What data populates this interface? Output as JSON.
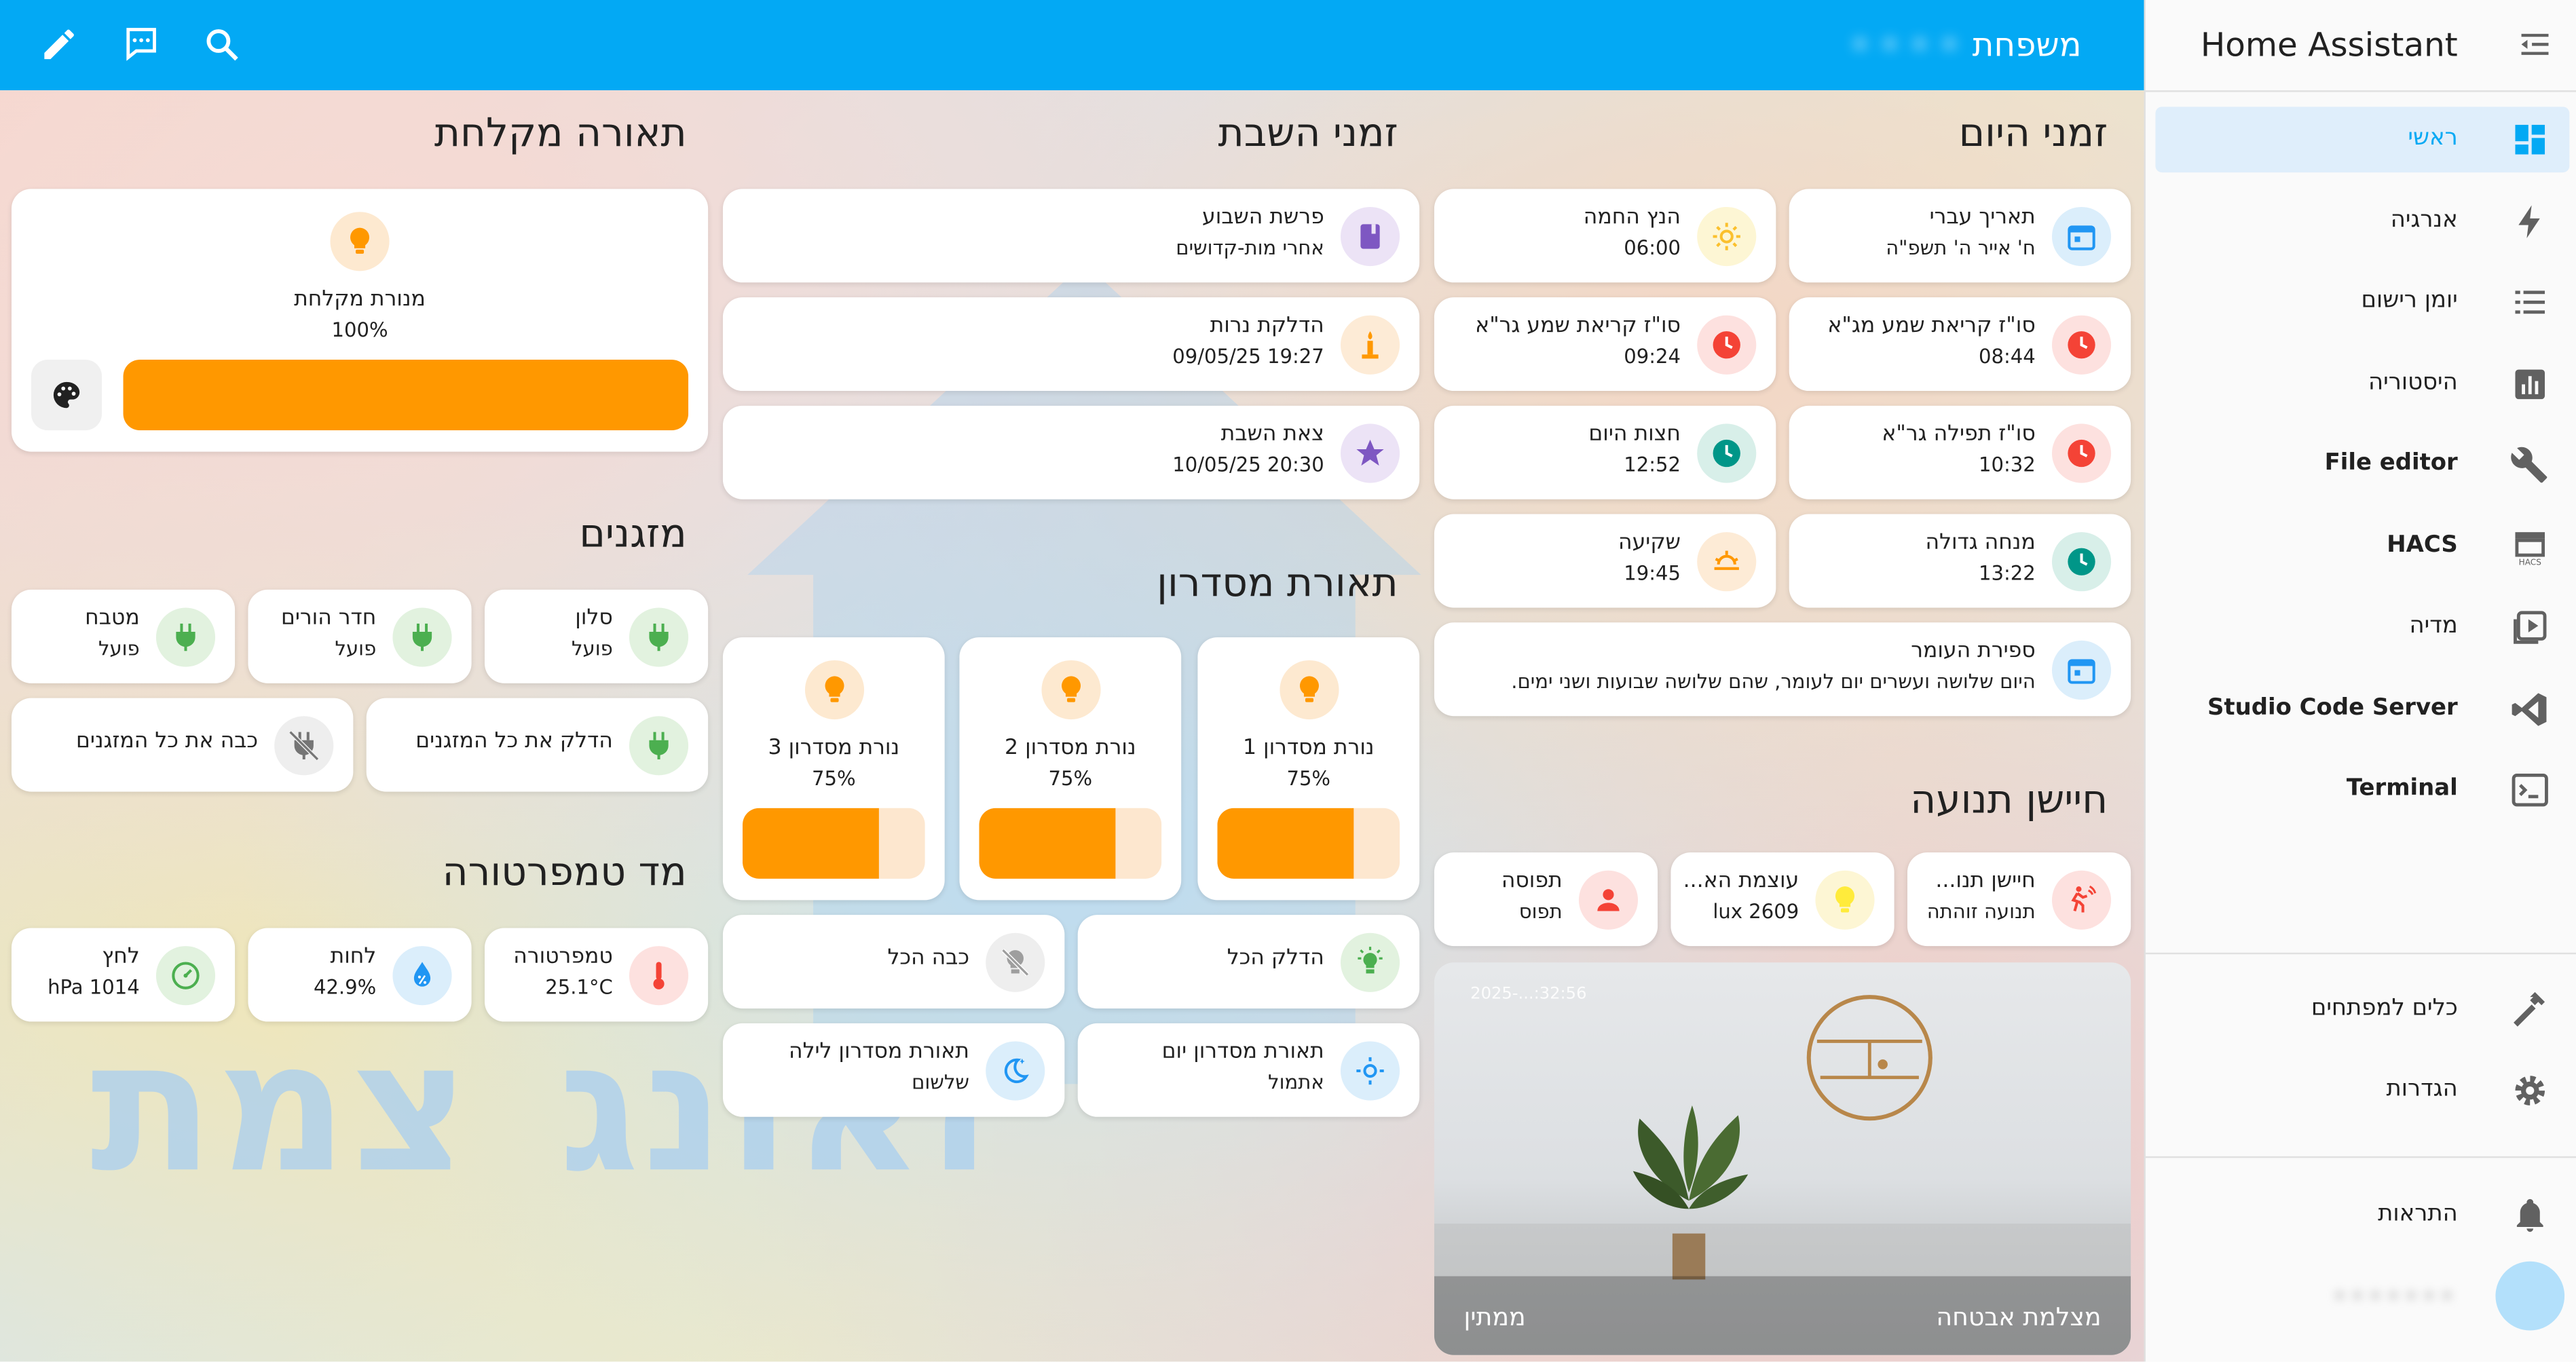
{
  "sidebar": {
    "title": "Home Assistant",
    "items": [
      {
        "label": "ראשי",
        "icon": "dashboard-icon",
        "active": true
      },
      {
        "label": "אנרגיה",
        "icon": "lightning-bolt-icon"
      },
      {
        "label": "יומן רישום",
        "icon": "list-icon"
      },
      {
        "label": "היסטוריה",
        "icon": "chart-box-icon"
      },
      {
        "label": "File editor",
        "icon": "wrench-icon"
      },
      {
        "label": "HACS",
        "icon": "hacs-icon"
      },
      {
        "label": "מדיה",
        "icon": "play-box-icon"
      },
      {
        "label": "Studio Code Server",
        "icon": "vscode-icon"
      },
      {
        "label": "Terminal",
        "icon": "console-icon"
      }
    ],
    "tools": [
      {
        "label": "כלים למפתחים",
        "icon": "hammer-icon"
      },
      {
        "label": "הגדרות",
        "icon": "cog-icon"
      }
    ],
    "notifications": {
      "label": "התראות",
      "icon": "bell-icon"
    }
  },
  "header": {
    "title": "משפחת"
  },
  "sections": {
    "day_times": "זמני היום",
    "shabbat_times": "זמני השבת",
    "kitchen_light": "תאורה מקלחת",
    "ac": "מזגנים",
    "hall_light": "תאורת מסדרון",
    "motion": "חיישן תנועה",
    "temperature": "מד טמפרטורה"
  },
  "day_times": [
    {
      "name": "תאריך עברי",
      "value": "ח' אייר ה' תשפ\"ה"
    },
    {
      "name": "הנץ החמה",
      "value": "06:00"
    },
    {
      "name": "סו\"ז קריאת שמע מג\"א",
      "value": "08:44"
    },
    {
      "name": "סו\"ז קריאת שמע גר\"א",
      "value": "09:24"
    },
    {
      "name": "סו\"ז תפילה גר\"א",
      "value": "10:32"
    },
    {
      "name": "חצות היום",
      "value": "12:52"
    },
    {
      "name": "מנחה גדולה",
      "value": "13:22"
    },
    {
      "name": "שקיעה",
      "value": "19:45"
    },
    {
      "name": "ספירת העומר",
      "value": "היום שלושה ועשרים יום לעומר, שהם שלושה שבועות ושני ימים."
    }
  ],
  "shabbat": [
    {
      "name": "פרשת השבוע",
      "value": "אחרי מות-קדושים"
    },
    {
      "name": "הדלקת נרות",
      "value": "19:27 09/05/25"
    },
    {
      "name": "צאת השבת",
      "value": "20:30 10/05/25"
    }
  ],
  "kitchen_light": {
    "name": "מנורת מקלחת",
    "value": "100%",
    "level": 1.0
  },
  "ac": [
    {
      "name": "סלון",
      "value": "פועל"
    },
    {
      "name": "חדר הורים",
      "value": "פועל"
    },
    {
      "name": "מטבח",
      "value": "פועל"
    },
    {
      "name": "הדלק את כל המזגנים"
    },
    {
      "name": "כבה את כל המזגנים"
    }
  ],
  "hall_lights": [
    {
      "name": "נורת מסדרון 1",
      "value": "75%",
      "level": 0.75
    },
    {
      "name": "נורת מסדרון 2",
      "value": "75%",
      "level": 0.75
    },
    {
      "name": "נורת מסדרון 3",
      "value": "75%",
      "level": 0.75
    }
  ],
  "hall_controls": [
    {
      "name": "הדלק הכל"
    },
    {
      "name": "כבה הכל"
    },
    {
      "name": "תאורת מסדרון יום",
      "value": "אתמול"
    },
    {
      "name": "תאורת מסדרון לילה",
      "value": "שלשום"
    }
  ],
  "motion": [
    {
      "name": "חיישן תנו...",
      "value": "תנועה זוהתה"
    },
    {
      "name": "עוצמת הא...",
      "value": "2609 lux"
    },
    {
      "name": "תפוסה",
      "value": "תפוס"
    }
  ],
  "temperature": [
    {
      "name": "טמפרטורה",
      "value": "25.1°C"
    },
    {
      "name": "לחות",
      "value": "42.9%"
    },
    {
      "name": "לחץ",
      "value": "1014 hPa"
    }
  ],
  "camera": {
    "name": "מצלמת אבטחה",
    "state": "ממתין",
    "timestamp": "2025-...:32:56"
  },
  "watermark": {
    "left": "צמת",
    "right": "זאונג"
  },
  "colors": {
    "primary": "#03a9f4",
    "orange": "#ff9800",
    "green": "#4caf50",
    "red": "#f44336",
    "teal": "#009688",
    "purple": "#7e57c2"
  }
}
